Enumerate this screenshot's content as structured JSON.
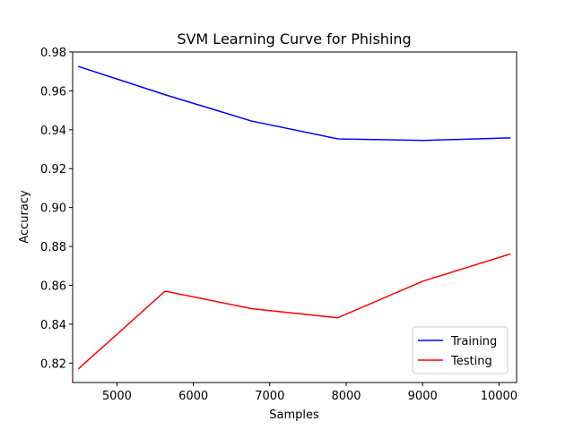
{
  "chart_data": {
    "type": "line",
    "title": "SVM Learning Curve for Phishing",
    "xlabel": "Samples",
    "ylabel": "Accuracy",
    "xlim": [
      4420,
      10230
    ],
    "ylim": [
      0.81,
      0.98
    ],
    "xticks": [
      5000,
      6000,
      7000,
      8000,
      9000,
      10000
    ],
    "yticks": [
      0.82,
      0.84,
      0.86,
      0.88,
      0.9,
      0.92,
      0.94,
      0.96,
      0.98
    ],
    "grid": false,
    "legend_position": "lower-right",
    "x": [
      4500,
      5630,
      6760,
      7890,
      9010,
      10140
    ],
    "series": [
      {
        "name": "Training",
        "color": "#0000ff",
        "values": [
          0.9725,
          0.958,
          0.9445,
          0.9353,
          0.9345,
          0.9358
        ]
      },
      {
        "name": "Testing",
        "color": "#ff0000",
        "values": [
          0.8172,
          0.857,
          0.848,
          0.8433,
          0.8622,
          0.876
        ]
      }
    ]
  }
}
